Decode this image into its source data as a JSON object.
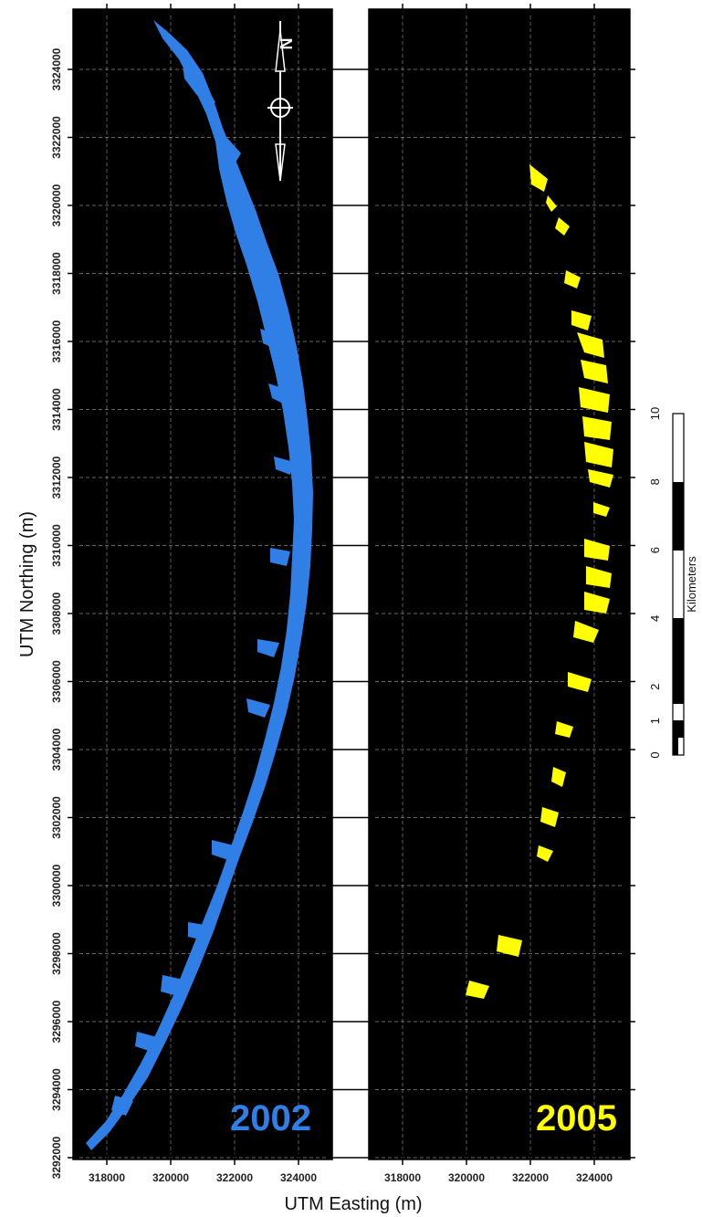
{
  "figure": {
    "ylabel": "UTM Northing (m)",
    "xlabel": "UTM Easting (m)"
  },
  "y_ticks": [
    "3292000",
    "3294000",
    "3296000",
    "3298000",
    "3300000",
    "3302000",
    "3304000",
    "3306000",
    "3308000",
    "3310000",
    "3312000",
    "3314000",
    "3316000",
    "3318000",
    "3320000",
    "3322000",
    "3324000"
  ],
  "x_ticks": [
    "318000",
    "320000",
    "322000",
    "324000"
  ],
  "panels": [
    {
      "id": "2002",
      "year_label": "2002",
      "color": "#2f7fe6"
    },
    {
      "id": "2005",
      "year_label": "2005",
      "color": "#ffff00"
    }
  ],
  "scale_bar": {
    "unit_label": "Kilometers",
    "tick_labels": [
      "0",
      "1",
      "2",
      "4",
      "6",
      "8",
      "10"
    ]
  },
  "north_arrow": {
    "letter": "N"
  },
  "colors": {
    "map_background": "#000000",
    "grid": "#8a8a8a",
    "panel_2002": "#2f7fe6",
    "panel_2005": "#ffff00"
  }
}
